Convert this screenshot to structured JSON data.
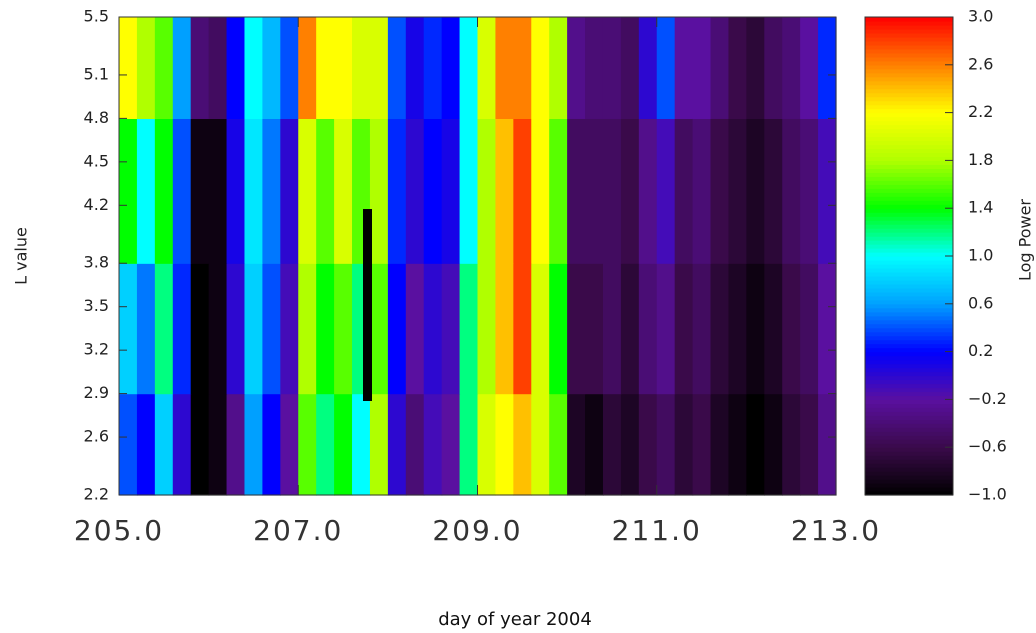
{
  "chart_data": {
    "type": "heatmap",
    "xlabel": "day of year 2004",
    "ylabel": "L value",
    "colorbar_label": "Log Power",
    "xlim": [
      205,
      213
    ],
    "xticks": [
      {
        "value": 205,
        "label": "205.0"
      },
      {
        "value": 207,
        "label": "207.0"
      },
      {
        "value": 209,
        "label": "209.0"
      },
      {
        "value": 211,
        "label": "211.0"
      },
      {
        "value": 213,
        "label": "213.0"
      }
    ],
    "ylim": [
      2.2,
      5.5
    ],
    "yticks": [
      2.2,
      2.6,
      2.9,
      3.2,
      3.5,
      3.8,
      4.2,
      4.5,
      4.8,
      5.1,
      5.5
    ],
    "clim": [
      -1,
      3
    ],
    "cticks": [
      {
        "value": -1,
        "label": "−1.0"
      },
      {
        "value": -0.6,
        "label": "−0.6"
      },
      {
        "value": -0.2,
        "label": "−0.2"
      },
      0.2,
      0.6,
      {
        "value": 1,
        "label": "1.0"
      },
      1.4,
      1.8,
      2.2,
      2.6,
      {
        "value": 3,
        "label": "3.0"
      }
    ],
    "colormap": [
      "#000000",
      "#3a0a4a",
      "#5a10a0",
      "#0000ff",
      "#00a0ff",
      "#00ffff",
      "#00ff00",
      "#b0ff00",
      "#ffff00",
      "#ff8000",
      "#ff0000"
    ],
    "xbins": [
      205,
      205.2,
      205.4,
      205.6,
      205.8,
      206,
      206.2,
      206.4,
      206.6,
      206.8,
      207,
      207.2,
      207.4,
      207.6,
      207.8,
      208,
      208.2,
      208.4,
      208.6,
      208.8,
      209,
      209.2,
      209.4,
      209.6,
      209.8,
      210,
      210.2,
      210.4,
      210.6,
      210.8,
      211,
      211.2,
      211.4,
      211.6,
      211.8,
      212,
      212.2,
      212.4,
      212.6,
      212.8,
      213
    ],
    "ybins": [
      2.2,
      2.9,
      3.8,
      4.8,
      5.5
    ],
    "z": [
      [
        0.4,
        0.2,
        0.8,
        0.0,
        -1,
        -0.9,
        -0.3,
        0.6,
        0.2,
        -0.2,
        1.6,
        1.2,
        1.4,
        1.0,
        1.8,
        0.0,
        -0.4,
        -0.1,
        -0.2,
        1.2,
        2.0,
        2.2,
        2.4,
        2.0,
        1.6,
        -0.8,
        -0.9,
        -0.7,
        -0.8,
        -0.6,
        -0.5,
        -0.7,
        -0.6,
        -0.8,
        -0.9,
        -1,
        -0.9,
        -0.7,
        -0.6,
        -0.3
      ],
      [
        0.8,
        0.5,
        1.2,
        0.3,
        -1,
        -0.9,
        0,
        0.8,
        0.4,
        -0.1,
        1.8,
        1.4,
        1.6,
        1.2,
        1.6,
        0.2,
        -0.2,
        0,
        -0.1,
        1.2,
        1.8,
        2.4,
        2.8,
        2.0,
        1.4,
        -0.6,
        -0.6,
        -0.5,
        -0.7,
        -0.4,
        -0.3,
        -0.6,
        -0.5,
        -0.7,
        -0.8,
        -0.9,
        -0.8,
        -0.6,
        -0.5,
        -0.2
      ],
      [
        1.4,
        1.0,
        1.4,
        0.4,
        -0.9,
        -0.9,
        0.1,
        0.9,
        0.5,
        0,
        2.0,
        1.6,
        2.0,
        1.6,
        1.8,
        0.3,
        0,
        0.2,
        0.1,
        1.0,
        1.8,
        2.4,
        2.8,
        2.2,
        1.6,
        -0.5,
        -0.5,
        -0.5,
        -0.6,
        -0.3,
        -0.1,
        -0.5,
        -0.4,
        -0.6,
        -0.7,
        -0.8,
        -0.7,
        -0.5,
        -0.4,
        -0.1
      ],
      [
        2.2,
        1.8,
        1.6,
        0.6,
        -0.4,
        -0.5,
        0.2,
        1.0,
        0.7,
        0.4,
        2.6,
        2.2,
        2.2,
        2.0,
        2.0,
        0.4,
        0.1,
        0.3,
        0.2,
        1.0,
        2.0,
        2.6,
        2.6,
        2.2,
        1.8,
        -0.3,
        -0.4,
        -0.4,
        -0.5,
        0.0,
        0.4,
        -0.2,
        -0.2,
        -0.4,
        -0.6,
        -0.7,
        -0.5,
        -0.4,
        -0.2,
        0.3
      ]
    ]
  }
}
